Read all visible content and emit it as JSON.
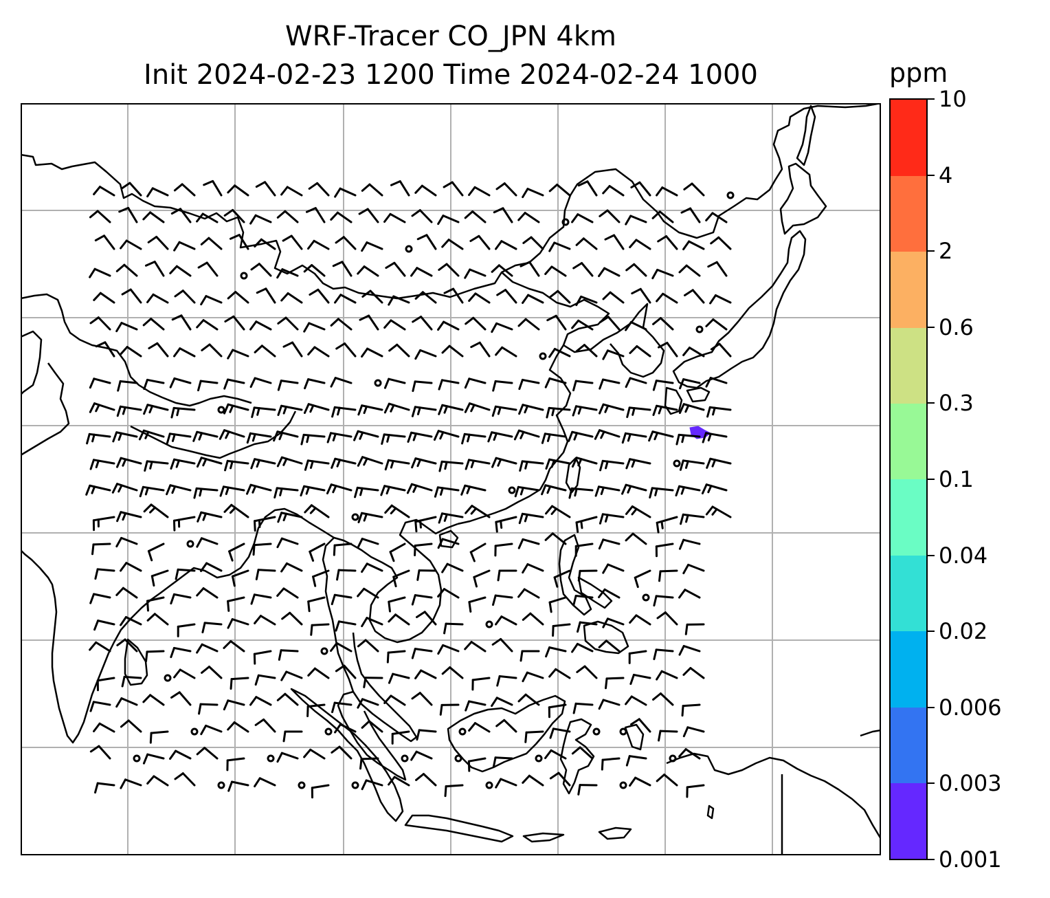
{
  "title": {
    "line1": "WRF-Tracer CO_JPN 4km",
    "line2": "Init 2024-02-23 1200 Time 2024-02-24 1000"
  },
  "colorbar": {
    "unit": "ppm",
    "levels": [
      "0.001",
      "0.003",
      "0.006",
      "0.02",
      "0.04",
      "0.1",
      "0.3",
      "0.6",
      "2",
      "4",
      "10"
    ],
    "colors": [
      "#6528ff",
      "#3374f2",
      "#00b1ef",
      "#33e0d5",
      "#6afdc4",
      "#98f996",
      "#cde184",
      "#fcb062",
      "#ff6f3d",
      "#ff2a18"
    ]
  },
  "map": {
    "plume_color": "#6528ff",
    "coastline_color": "#000000",
    "grid_color": "#b0b0b0"
  }
}
